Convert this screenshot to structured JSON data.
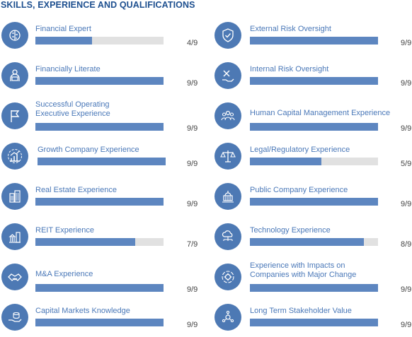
{
  "title": "SKILLS, EXPERIENCE AND QUALIFICATIONS",
  "colors": {
    "icon_bg": "#4d79b4",
    "bar_fill": "#5d86c0",
    "bar_track": "#e1e1e1",
    "label": "#4a78b8",
    "title": "#1d4f8f"
  },
  "skills": [
    {
      "label": "Financial Expert",
      "score": "4/9",
      "value": 4,
      "max": 9,
      "icon": "brain-icon"
    },
    {
      "label": "Financially Literate",
      "score": "9/9",
      "value": 9,
      "max": 9,
      "icon": "person-book-icon"
    },
    {
      "label": "Successful Operating\nExecutive Experience",
      "score": "9/9",
      "value": 9,
      "max": 9,
      "icon": "flag-icon"
    },
    {
      "label": "Growth Company Experience",
      "score": "9/9",
      "value": 9,
      "max": 9,
      "icon": "growth-chart-icon"
    },
    {
      "label": "Real Estate Experience",
      "score": "9/9",
      "value": 9,
      "max": 9,
      "icon": "buildings-icon"
    },
    {
      "label": "REIT Experience",
      "score": "7/9",
      "value": 7,
      "max": 9,
      "icon": "bank-city-icon"
    },
    {
      "label": "M&A Experience",
      "score": "9/9",
      "value": 9,
      "max": 9,
      "icon": "handshake-icon"
    },
    {
      "label": "Capital Markets Knowledge",
      "score": "9/9",
      "value": 9,
      "max": 9,
      "icon": "money-hand-icon"
    },
    {
      "label": "External Risk Oversight",
      "score": "9/9",
      "value": 9,
      "max": 9,
      "icon": "shield-check-icon"
    },
    {
      "label": "Internal Risk Oversight",
      "score": "9/9",
      "value": 9,
      "max": 9,
      "icon": "tools-hand-icon"
    },
    {
      "label": "Human Capital Management Experience",
      "score": "9/9",
      "value": 9,
      "max": 9,
      "icon": "people-group-icon"
    },
    {
      "label": "Legal/Regulatory Experience",
      "score": "5/9",
      "value": 5,
      "max": 9,
      "icon": "scales-icon"
    },
    {
      "label": "Public Company Experience",
      "score": "9/9",
      "value": 9,
      "max": 9,
      "icon": "capitol-building-icon"
    },
    {
      "label": "Technology Experience",
      "score": "8/9",
      "value": 8,
      "max": 9,
      "icon": "cloud-network-icon"
    },
    {
      "label": "Experience with Impacts on\nCompanies with Major Change",
      "score": "9/9",
      "value": 9,
      "max": 9,
      "icon": "gear-cycle-icon"
    },
    {
      "label": "Long Term Stakeholder Value",
      "score": "9/9",
      "value": 9,
      "max": 9,
      "icon": "stakeholders-icon"
    }
  ]
}
